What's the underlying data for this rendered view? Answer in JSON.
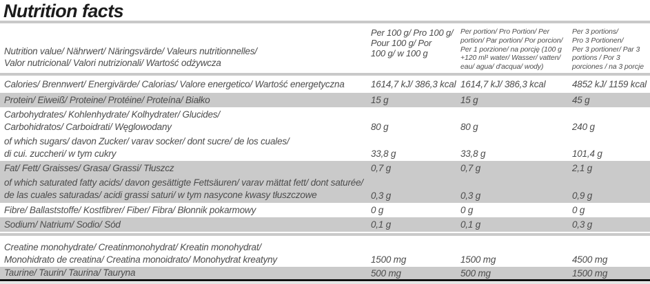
{
  "title": "Nutrition facts",
  "columns": {
    "label": [
      "Nutrition value/ Nährwert/ Näringsvärde/ Valeurs nutritionnelles/",
      "Valor nutricional/ Valori nutrizionali/ Wartość odżywcza"
    ],
    "per100": [
      "Per 100 g/ Pro 100 g/",
      "Pour 100 g/ Por",
      "100 g/ w 100 g"
    ],
    "perPortion": [
      "Per portion/ Pro Portion/ Per",
      "portion/ Par portion/ Por porcion/",
      "Per 1 porzione/ na porcję (100 g",
      "+120 ml¹ water/ Wasser/ vatten/",
      "eau/ agua/ d'acqua/ wody)"
    ],
    "per3": [
      "Per 3 portions/",
      "Pro 3 Portionen/",
      "Per 3 portioner/ Par 3",
      "portions / Por 3",
      "porciones / na 3 porcje"
    ]
  },
  "rows": [
    {
      "name": "calories",
      "lines": [
        "Calories/ Brennwert/ Energivärde/ Calorias/ Valore energetico/ Wartość energetyczna"
      ],
      "per100": "1614,7 kJ/ 386,3 kcal",
      "portion": "1614,7 kJ/ 386,3 kcal",
      "portions3": "4852 kJ/ 1159 kcal"
    },
    {
      "name": "protein",
      "lines": [
        "Protein/ Eiweiß/ Proteine/ Protéine/ Proteína/ Białko"
      ],
      "per100": "15 g",
      "portion": "15 g",
      "portions3": "45 g"
    },
    {
      "name": "carbohydrates",
      "lines": [
        "Carbohydrates/ Kohlenhydrate/ Kolhydrater/ Glucides/",
        "Carbohidratos/ Carboidrati/ Węglowodany"
      ],
      "per100": "80 g",
      "portion": "80 g",
      "portions3": "240 g"
    },
    {
      "name": "sugars",
      "lines": [
        "of which sugars/ davon Zucker/ varav socker/ dont sucre/ de los cuales/",
        "di cui. zuccheri/ w tym cukry"
      ],
      "per100": "33,8 g",
      "portion": "33,8 g",
      "portions3": "101,4 g"
    },
    {
      "name": "fat",
      "lines": [
        "Fat/ Fett/ Graisses/ Grasa/ Grassi/ Tłuszcz"
      ],
      "per100": "0,7 g",
      "portion": "0,7 g",
      "portions3": "2,1 g"
    },
    {
      "name": "saturated-fat",
      "lines": [
        "of which saturated fatty acids/ davon gesättigte Fettsäuren/ varav mättat fett/ dont saturée/",
        "de las cuales saturadas/ acidi grassi saturi/ w tym nasycone kwasy tłuszczowe"
      ],
      "per100": "0,3 g",
      "portion": "0,3 g",
      "portions3": "0,9 g"
    },
    {
      "name": "fibre",
      "lines": [
        "Fibre/ Ballaststoffe/ Kostfibrer/ Fiber/ Fibra/ Błonnik pokarmowy"
      ],
      "per100": "0 g",
      "portion": "0 g",
      "portions3": "0 g"
    },
    {
      "name": "sodium",
      "lines": [
        "Sodium/ Natrium/ Sodio/ Sód"
      ],
      "per100": "0,1 g",
      "portion": "0,1 g",
      "portions3": "0,3 g"
    },
    {
      "name": "creatine",
      "lines": [
        "Creatine monohydrate/ Creatinmonohydrat/ Kreatin monohydrat/",
        "Monohidrato de creatina/ Creatina monoidrato/ Monohydrat kreatyny"
      ],
      "per100": "1500 mg",
      "portion": "1500 mg",
      "portions3": "4500 mg"
    },
    {
      "name": "taurine",
      "lines": [
        "Taurine/ Taurin/ Taurina/ Tauryna"
      ],
      "per100": "500 mg",
      "portion": "500 mg",
      "portions3": "1500 mg"
    }
  ],
  "colors": {
    "title_text": "#1c1c1c",
    "body_text": "#4c4c4c",
    "row_stripe": "#cacaca",
    "divider": "#c9c9c9",
    "bottom_bar": "#111111",
    "footer_strip": "#e4e4e4"
  }
}
